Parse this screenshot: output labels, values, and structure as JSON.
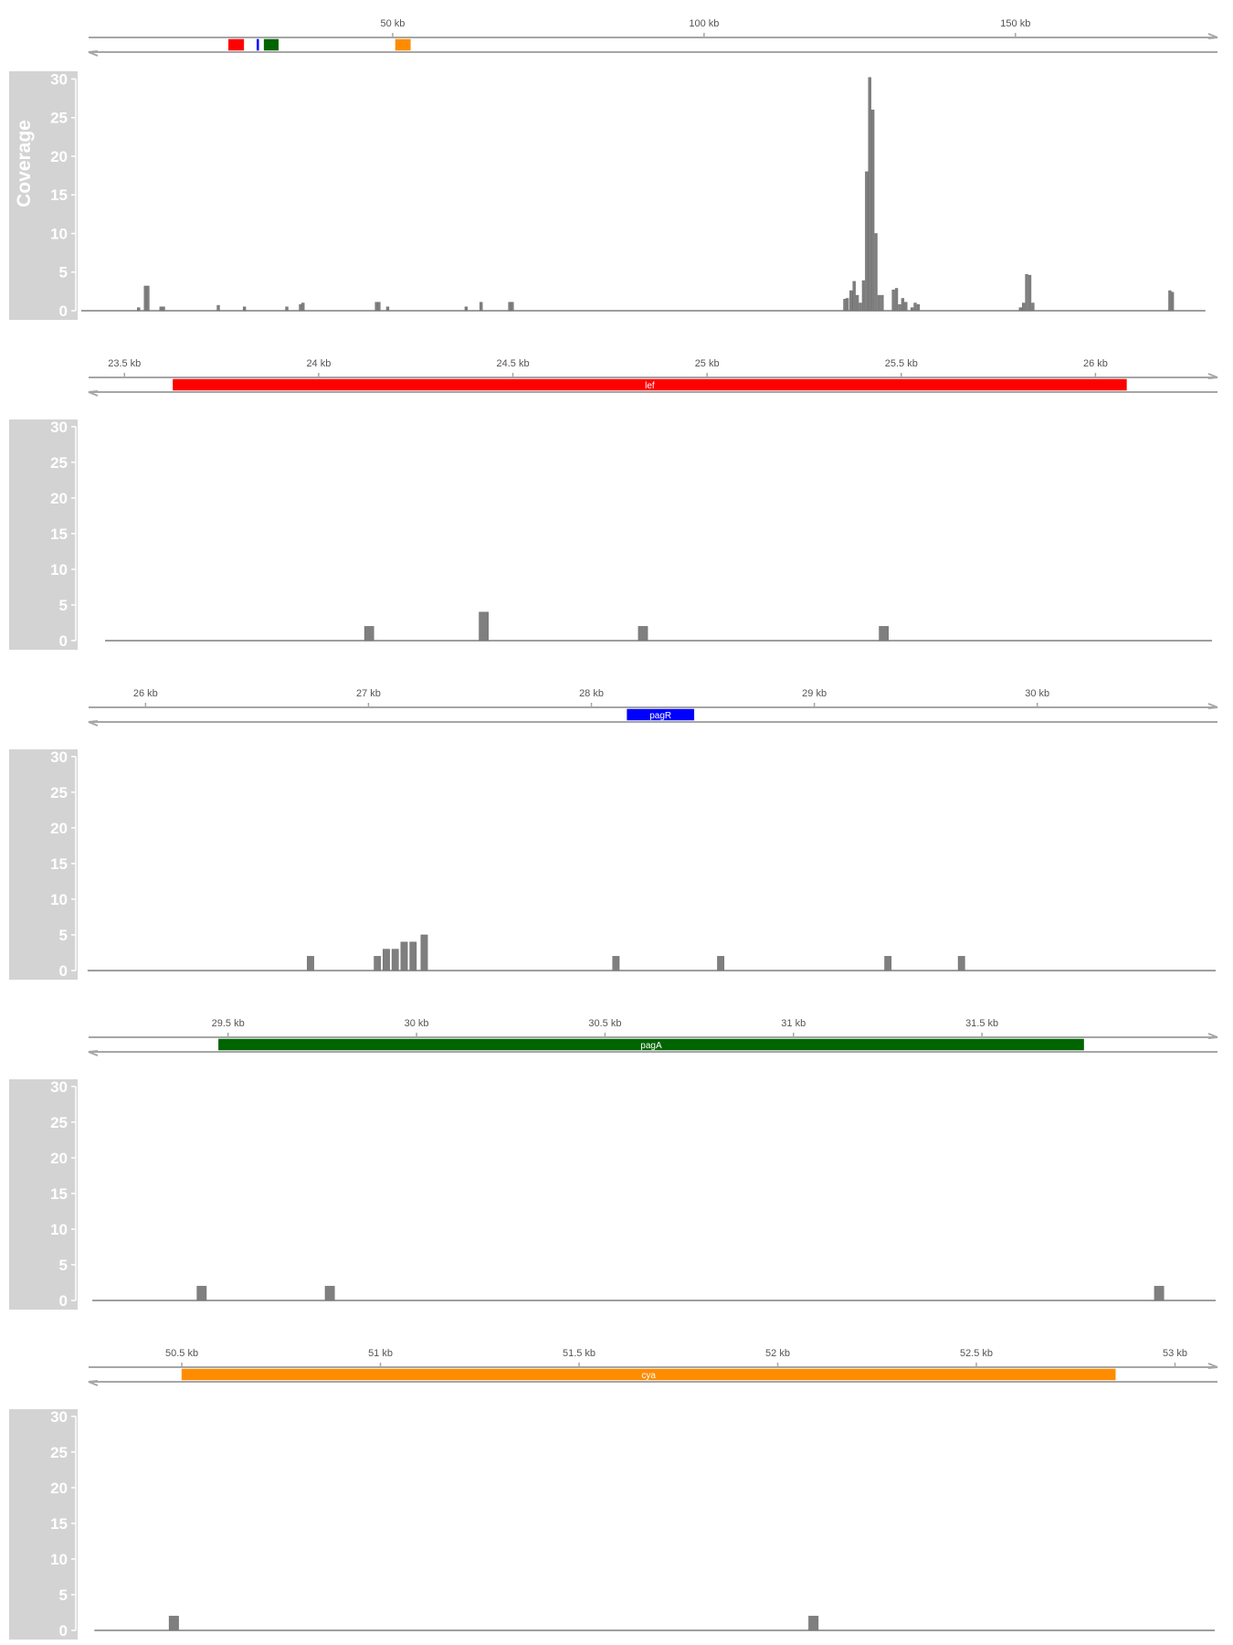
{
  "chart_data": [
    {
      "type": "bar",
      "title": "",
      "ylabel": "Coverage",
      "xunit": "kb",
      "xlim": [
        0,
        182
      ],
      "ylim": [
        0,
        31
      ],
      "yticks": [
        0,
        5,
        10,
        15,
        20,
        25,
        30
      ],
      "axis_ticks": [
        {
          "value": 50,
          "label": "50 kb"
        },
        {
          "value": 100,
          "label": "100 kb"
        },
        {
          "value": 150,
          "label": "150 kb"
        }
      ],
      "genes": [
        {
          "name": "lef",
          "start": 23.66,
          "end": 26.09,
          "color": "#ff0000",
          "show_label": false
        },
        {
          "name": "pagR",
          "start": 28.2,
          "end": 28.5,
          "color": "#0000ff",
          "show_label": false
        },
        {
          "name": "pagA",
          "start": 29.35,
          "end": 31.65,
          "color": "#006400",
          "show_label": false
        },
        {
          "name": "cya",
          "start": 50.45,
          "end": 52.85,
          "color": "#ff8c00",
          "show_label": false
        }
      ],
      "bar_width": 0.42,
      "baseline_range": [
        0,
        180.5
      ],
      "bars": [
        {
          "x": 10.3,
          "y": 3.2
        },
        {
          "x": 10.7,
          "y": 3.2
        },
        {
          "x": 9.2,
          "y": 0.4
        },
        {
          "x": 12.8,
          "y": 0.5
        },
        {
          "x": 13.2,
          "y": 0.5
        },
        {
          "x": 22.0,
          "y": 0.7
        },
        {
          "x": 26.2,
          "y": 0.5
        },
        {
          "x": 33.0,
          "y": 0.5
        },
        {
          "x": 35.2,
          "y": 0.8
        },
        {
          "x": 35.6,
          "y": 1.0
        },
        {
          "x": 47.4,
          "y": 1.1
        },
        {
          "x": 47.8,
          "y": 1.1
        },
        {
          "x": 49.2,
          "y": 0.5
        },
        {
          "x": 61.8,
          "y": 0.5
        },
        {
          "x": 64.2,
          "y": 1.1
        },
        {
          "x": 68.8,
          "y": 1.1
        },
        {
          "x": 69.2,
          "y": 1.1
        },
        {
          "x": 122.6,
          "y": 1.5
        },
        {
          "x": 123.0,
          "y": 1.6
        },
        {
          "x": 123.6,
          "y": 2.6
        },
        {
          "x": 124.1,
          "y": 3.8
        },
        {
          "x": 124.6,
          "y": 2.0
        },
        {
          "x": 125.1,
          "y": 1.0
        },
        {
          "x": 125.6,
          "y": 3.9
        },
        {
          "x": 126.1,
          "y": 18.0
        },
        {
          "x": 126.6,
          "y": 30.2
        },
        {
          "x": 127.1,
          "y": 26.0
        },
        {
          "x": 127.6,
          "y": 10.0
        },
        {
          "x": 128.1,
          "y": 2.0
        },
        {
          "x": 128.6,
          "y": 2.0
        },
        {
          "x": 130.4,
          "y": 2.7
        },
        {
          "x": 130.9,
          "y": 2.9
        },
        {
          "x": 131.4,
          "y": 0.8
        },
        {
          "x": 131.9,
          "y": 1.6
        },
        {
          "x": 132.4,
          "y": 1.1
        },
        {
          "x": 133.4,
          "y": 0.4
        },
        {
          "x": 133.9,
          "y": 1.0
        },
        {
          "x": 134.4,
          "y": 0.8
        },
        {
          "x": 150.8,
          "y": 0.4
        },
        {
          "x": 151.3,
          "y": 1.0
        },
        {
          "x": 151.8,
          "y": 4.7
        },
        {
          "x": 152.3,
          "y": 4.6
        },
        {
          "x": 152.8,
          "y": 1.0
        },
        {
          "x": 174.8,
          "y": 2.6
        },
        {
          "x": 175.2,
          "y": 2.4
        }
      ]
    },
    {
      "type": "bar",
      "title": "",
      "ylabel": "",
      "xunit": "kb",
      "xlim": [
        23.41,
        26.3
      ],
      "ylim": [
        0,
        31
      ],
      "yticks": [
        0,
        5,
        10,
        15,
        20,
        25,
        30
      ],
      "axis_ticks": [
        {
          "value": 23.5,
          "label": "23.5 kb"
        },
        {
          "value": 24.0,
          "label": "24 kb"
        },
        {
          "value": 24.5,
          "label": "24.5 kb"
        },
        {
          "value": 25.0,
          "label": "25 kb"
        },
        {
          "value": 25.5,
          "label": "25.5 kb"
        },
        {
          "value": 26.0,
          "label": "26 kb"
        }
      ],
      "genes": [
        {
          "name": "lef",
          "start": 23.625,
          "end": 26.08,
          "color": "#ff0000",
          "show_label": true
        }
      ],
      "bar_width": 0.024,
      "baseline_range": [
        23.45,
        26.3
      ],
      "bars": [
        {
          "x": 24.13,
          "y": 2
        },
        {
          "x": 24.425,
          "y": 4
        },
        {
          "x": 24.835,
          "y": 2
        },
        {
          "x": 25.455,
          "y": 2
        }
      ]
    },
    {
      "type": "bar",
      "title": "",
      "ylabel": "",
      "xunit": "kb",
      "xlim": [
        25.72,
        30.8
      ],
      "ylim": [
        0,
        31
      ],
      "yticks": [
        0,
        5,
        10,
        15,
        20,
        25,
        30
      ],
      "axis_ticks": [
        {
          "value": 26,
          "label": "26 kb"
        },
        {
          "value": 27,
          "label": "27 kb"
        },
        {
          "value": 28,
          "label": "28 kb"
        },
        {
          "value": 29,
          "label": "29 kb"
        },
        {
          "value": 30,
          "label": "30 kb"
        }
      ],
      "genes": [
        {
          "name": "pagR",
          "start": 28.16,
          "end": 28.46,
          "color": "#0000ff",
          "show_label": true
        }
      ],
      "bar_width": 0.03,
      "baseline_range": [
        25.74,
        30.8
      ],
      "bars": [
        {
          "x": 26.74,
          "y": 2
        },
        {
          "x": 27.04,
          "y": 2
        },
        {
          "x": 27.08,
          "y": 3
        },
        {
          "x": 27.12,
          "y": 3
        },
        {
          "x": 27.16,
          "y": 4
        },
        {
          "x": 27.2,
          "y": 4
        },
        {
          "x": 27.25,
          "y": 5
        },
        {
          "x": 28.11,
          "y": 2
        },
        {
          "x": 28.58,
          "y": 2
        },
        {
          "x": 29.33,
          "y": 2
        },
        {
          "x": 29.66,
          "y": 2
        }
      ]
    },
    {
      "type": "bar",
      "title": "",
      "ylabel": "",
      "xunit": "kb",
      "xlim": [
        29.13,
        32.12
      ],
      "ylim": [
        0,
        31
      ],
      "yticks": [
        0,
        5,
        10,
        15,
        20,
        25,
        30
      ],
      "axis_ticks": [
        {
          "value": 29.5,
          "label": "29.5 kb"
        },
        {
          "value": 30.0,
          "label": "30 kb"
        },
        {
          "value": 30.5,
          "label": "30.5 kb"
        },
        {
          "value": 31.0,
          "label": "31 kb"
        },
        {
          "value": 31.5,
          "label": "31.5 kb"
        }
      ],
      "genes": [
        {
          "name": "pagA",
          "start": 29.475,
          "end": 31.77,
          "color": "#006400",
          "show_label": true
        }
      ],
      "bar_width": 0.025,
      "baseline_range": [
        29.14,
        32.12
      ],
      "bars": [
        {
          "x": 29.43,
          "y": 2
        },
        {
          "x": 29.77,
          "y": 2
        },
        {
          "x": 31.97,
          "y": 2
        }
      ]
    },
    {
      "type": "bar",
      "title": "",
      "ylabel": "",
      "xunit": "kb",
      "xlim": [
        50.27,
        53.1
      ],
      "ylim": [
        0,
        31
      ],
      "yticks": [
        0,
        5,
        10,
        15,
        20,
        25,
        30
      ],
      "axis_ticks": [
        {
          "value": 50.5,
          "label": "50.5 kb"
        },
        {
          "value": 51.0,
          "label": "51 kb"
        },
        {
          "value": 51.5,
          "label": "51.5 kb"
        },
        {
          "value": 52.0,
          "label": "52 kb"
        },
        {
          "value": 52.5,
          "label": "52.5 kb"
        },
        {
          "value": 53.0,
          "label": "53 kb"
        }
      ],
      "genes": [
        {
          "name": "cya",
          "start": 50.5,
          "end": 52.85,
          "color": "#ff8c00",
          "show_label": true
        }
      ],
      "bar_width": 0.024,
      "baseline_range": [
        50.28,
        53.1
      ],
      "bars": [
        {
          "x": 50.48,
          "y": 2
        },
        {
          "x": 52.09,
          "y": 2
        }
      ]
    }
  ]
}
